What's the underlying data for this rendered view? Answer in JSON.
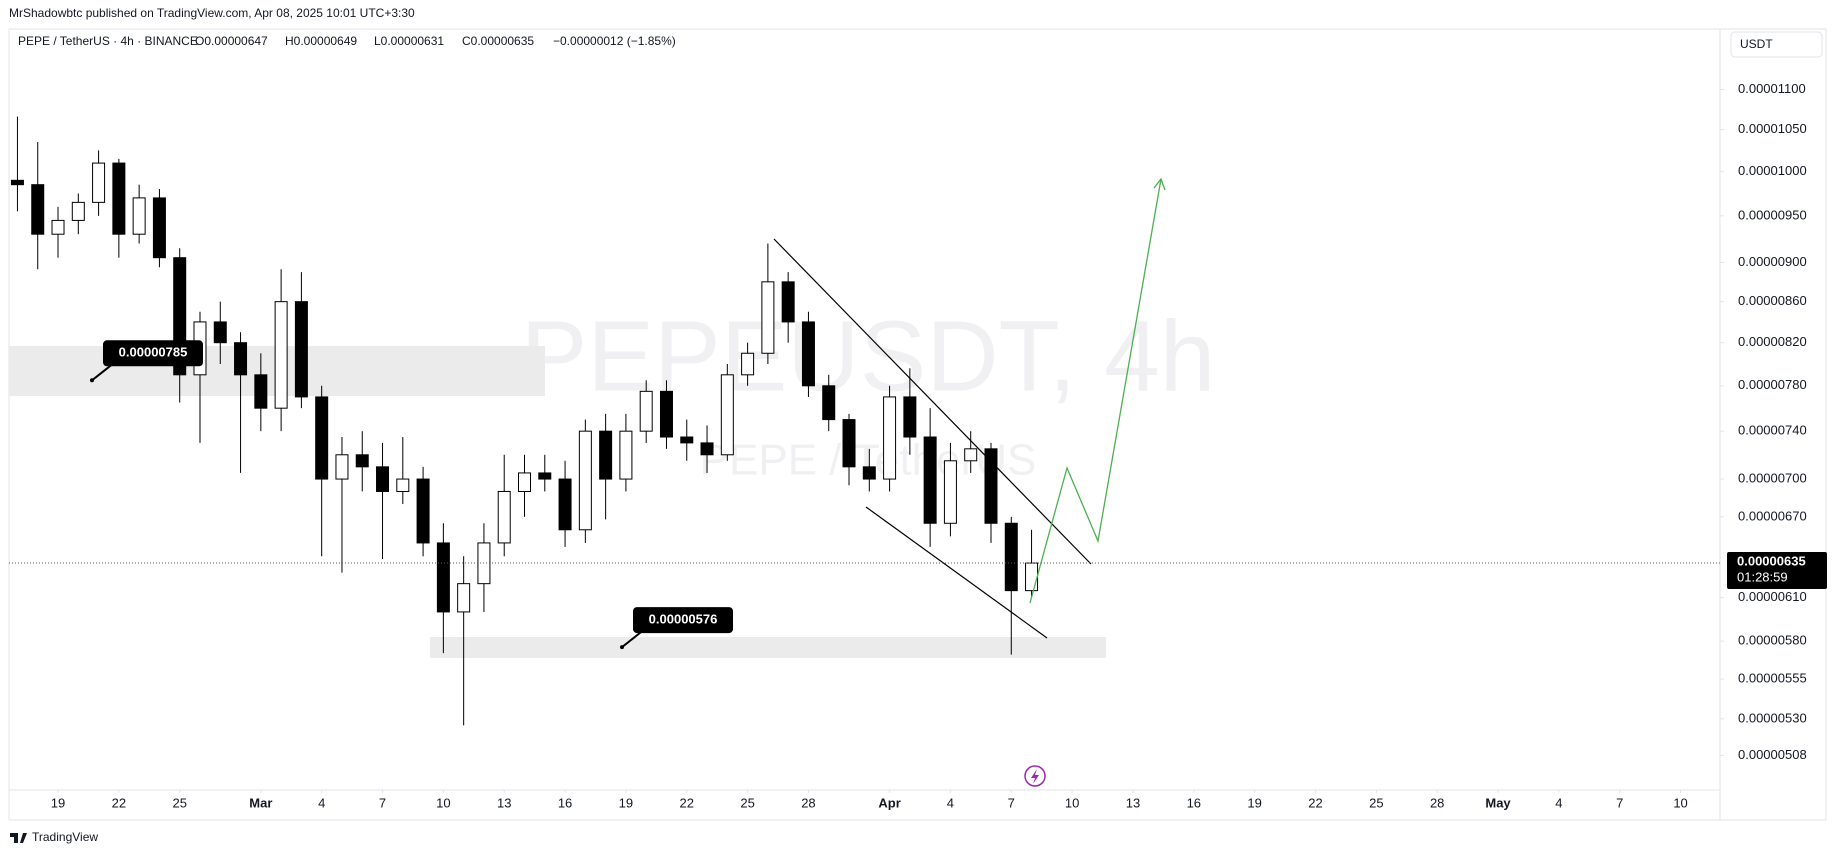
{
  "header": {
    "published": "MrShadowbtc published on TradingView.com, Apr 08, 2025 10:01 UTC+3:30"
  },
  "legend": {
    "symbol": "PEPE / TetherUS · 4h · BINANCE",
    "open": "O0.00000647",
    "high": "H0.00000649",
    "low": "L0.00000631",
    "close": "C0.00000635",
    "change": "−0.00000012 (−1.85%)"
  },
  "currency_button": "USDT",
  "footer": {
    "logo": "TradingView"
  },
  "chart_data": {
    "type": "candlestick",
    "watermark": "PEPEUSDT, 4h",
    "watermark_sub": "PEPE / TetherUS",
    "log_scale": true,
    "grid": false,
    "up_color": "#ffffff",
    "down_color": "#000000",
    "x": [
      "2025-02-17",
      "2025-02-18",
      "2025-02-19",
      "2025-02-20",
      "2025-02-21",
      "2025-02-22",
      "2025-02-23",
      "2025-02-24",
      "2025-02-25",
      "2025-02-26",
      "2025-02-27",
      "2025-02-28",
      "2025-03-01",
      "2025-03-02",
      "2025-03-03",
      "2025-03-04",
      "2025-03-05",
      "2025-03-06",
      "2025-03-07",
      "2025-03-08",
      "2025-03-09",
      "2025-03-10",
      "2025-03-11",
      "2025-03-12",
      "2025-03-13",
      "2025-03-14",
      "2025-03-15",
      "2025-03-16",
      "2025-03-17",
      "2025-03-18",
      "2025-03-19",
      "2025-03-20",
      "2025-03-21",
      "2025-03-22",
      "2025-03-23",
      "2025-03-24",
      "2025-03-25",
      "2025-03-26",
      "2025-03-27",
      "2025-03-28",
      "2025-03-29",
      "2025-03-30",
      "2025-03-31",
      "2025-04-01",
      "2025-04-02",
      "2025-04-03",
      "2025-04-04",
      "2025-04-05",
      "2025-04-06",
      "2025-04-07",
      "2025-04-08"
    ],
    "open": [
      9.9e-06,
      9.85e-06,
      9.3e-06,
      9.45e-06,
      9.65e-06,
      1.01e-05,
      9.3e-06,
      9.7e-06,
      9.05e-06,
      7.9e-06,
      8.4e-06,
      8.2e-06,
      7.9e-06,
      7.6e-06,
      8.6e-06,
      7.7e-06,
      7e-06,
      7.2e-06,
      7.1e-06,
      6.9e-06,
      7e-06,
      6.5e-06,
      6e-06,
      6.2e-06,
      6.5e-06,
      6.9e-06,
      7.05e-06,
      7e-06,
      6.6e-06,
      7.4e-06,
      7e-06,
      7.4e-06,
      7.75e-06,
      7.35e-06,
      7.3e-06,
      7.2e-06,
      7.9e-06,
      8.1e-06,
      8.8e-06,
      8.4e-06,
      7.8e-06,
      7.5e-06,
      7.1e-06,
      7e-06,
      7.7e-06,
      7.35e-06,
      6.65e-06,
      7.15e-06,
      7.25e-06,
      6.65e-06,
      6.15e-06
    ],
    "high": [
      1.066e-05,
      1.035e-05,
      9.6e-06,
      9.75e-06,
      1.025e-05,
      1.015e-05,
      9.85e-06,
      9.8e-06,
      9.15e-06,
      8.5e-06,
      8.6e-06,
      8.3e-06,
      8.1e-06,
      8.93e-06,
      8.9e-06,
      7.8e-06,
      7.35e-06,
      7.4e-06,
      7.3e-06,
      7.35e-06,
      7.1e-06,
      6.65e-06,
      6.4e-06,
      6.65e-06,
      7.2e-06,
      7.2e-06,
      7.2e-06,
      7.15e-06,
      7.5e-06,
      7.55e-06,
      7.55e-06,
      7.85e-06,
      7.85e-06,
      7.5e-06,
      7.45e-06,
      8e-06,
      8.2e-06,
      9.2e-06,
      8.9e-06,
      8.5e-06,
      7.9e-06,
      7.55e-06,
      7.25e-06,
      7.8e-06,
      7.96e-06,
      7.6e-06,
      7.3e-06,
      7.4e-06,
      7.3e-06,
      6.7e-06,
      6.6e-06
    ],
    "low": [
      9.55e-06,
      8.93e-06,
      9.05e-06,
      9.3e-06,
      9.5e-06,
      9.05e-06,
      9.2e-06,
      8.95e-06,
      7.65e-06,
      7.3e-06,
      8e-06,
      7.05e-06,
      7.4e-06,
      7.4e-06,
      7.6e-06,
      6.4e-06,
      6.28e-06,
      6.9e-06,
      6.38e-06,
      6.8e-06,
      6.4e-06,
      5.72e-06,
      5.26e-06,
      6e-06,
      6.4e-06,
      6.7e-06,
      6.9e-06,
      6.47e-06,
      6.5e-06,
      6.68e-06,
      6.9e-06,
      7.3e-06,
      7.25e-06,
      7.15e-06,
      7.05e-06,
      7.15e-06,
      7.8e-06,
      8e-06,
      8.2e-06,
      7.7e-06,
      7.4e-06,
      6.95e-06,
      6.9e-06,
      6.9e-06,
      7.2e-06,
      6.47e-06,
      6.55e-06,
      7.05e-06,
      6.5e-06,
      5.71e-06,
      6.1e-06
    ],
    "close": [
      9.85e-06,
      9.3e-06,
      9.45e-06,
      9.65e-06,
      1.01e-05,
      9.3e-06,
      9.7e-06,
      9.05e-06,
      7.9e-06,
      8.4e-06,
      8.2e-06,
      7.9e-06,
      7.6e-06,
      8.6e-06,
      7.7e-06,
      7e-06,
      7.2e-06,
      7.1e-06,
      6.9e-06,
      7e-06,
      6.5e-06,
      6e-06,
      6.2e-06,
      6.5e-06,
      6.9e-06,
      7.05e-06,
      7e-06,
      6.6e-06,
      7.4e-06,
      7e-06,
      7.4e-06,
      7.75e-06,
      7.35e-06,
      7.3e-06,
      7.2e-06,
      7.9e-06,
      8.1e-06,
      8.8e-06,
      8.4e-06,
      7.8e-06,
      7.5e-06,
      7.1e-06,
      7e-06,
      7.7e-06,
      7.35e-06,
      6.65e-06,
      7.15e-06,
      7.25e-06,
      6.65e-06,
      6.15e-06,
      6.35e-06
    ],
    "xlim": [
      "2025-02-16T14:00",
      "2025-05-11T12:00"
    ],
    "ylim": [
      4.88e-06,
      1.18e-05
    ],
    "yticks": [
      {
        "value": 1.1e-05,
        "label": "0.00001100"
      },
      {
        "value": 1.05e-05,
        "label": "0.00001050"
      },
      {
        "value": 1e-05,
        "label": "0.00001000"
      },
      {
        "value": 9.5e-06,
        "label": "0.00000950"
      },
      {
        "value": 9e-06,
        "label": "0.00000900"
      },
      {
        "value": 8.6e-06,
        "label": "0.00000860"
      },
      {
        "value": 8.2e-06,
        "label": "0.00000820"
      },
      {
        "value": 7.8e-06,
        "label": "0.00000780"
      },
      {
        "value": 7.4e-06,
        "label": "0.00000740"
      },
      {
        "value": 7e-06,
        "label": "0.00000700"
      },
      {
        "value": 6.7e-06,
        "label": "0.00000670"
      },
      {
        "value": 6.1e-06,
        "label": "0.00000610"
      },
      {
        "value": 5.8e-06,
        "label": "0.00000580"
      },
      {
        "value": 5.55e-06,
        "label": "0.00000555"
      },
      {
        "value": 5.3e-06,
        "label": "0.00000530"
      },
      {
        "value": 5.08e-06,
        "label": "0.00000508"
      }
    ],
    "xticks": [
      {
        "value": "2025-02-19",
        "label": "19"
      },
      {
        "value": "2025-02-22",
        "label": "22"
      },
      {
        "value": "2025-02-25",
        "label": "25"
      },
      {
        "value": "2025-03-01",
        "label": "Mar"
      },
      {
        "value": "2025-03-04",
        "label": "4"
      },
      {
        "value": "2025-03-07",
        "label": "7"
      },
      {
        "value": "2025-03-10",
        "label": "10"
      },
      {
        "value": "2025-03-13",
        "label": "13"
      },
      {
        "value": "2025-03-16",
        "label": "16"
      },
      {
        "value": "2025-03-19",
        "label": "19"
      },
      {
        "value": "2025-03-22",
        "label": "22"
      },
      {
        "value": "2025-03-25",
        "label": "25"
      },
      {
        "value": "2025-03-28",
        "label": "28"
      },
      {
        "value": "2025-04-01",
        "label": "Apr"
      },
      {
        "value": "2025-04-04",
        "label": "4"
      },
      {
        "value": "2025-04-07",
        "label": "7"
      },
      {
        "value": "2025-04-10",
        "label": "10"
      },
      {
        "value": "2025-04-13",
        "label": "13"
      },
      {
        "value": "2025-04-16",
        "label": "16"
      },
      {
        "value": "2025-04-19",
        "label": "19"
      },
      {
        "value": "2025-04-22",
        "label": "22"
      },
      {
        "value": "2025-04-25",
        "label": "25"
      },
      {
        "value": "2025-04-28",
        "label": "28"
      },
      {
        "value": "2025-05-01",
        "label": "May"
      },
      {
        "value": "2025-05-04",
        "label": "4"
      },
      {
        "value": "2025-05-07",
        "label": "7"
      },
      {
        "value": "2025-05-10",
        "label": "10"
      }
    ],
    "last_price": {
      "value": 6.35e-06,
      "label": "0.00000635"
    },
    "countdown": "01:28:59",
    "annotations": [
      {
        "value": 7.85e-06,
        "label": "0.00000785"
      },
      {
        "value": 5.76e-06,
        "label": "0.00000576"
      }
    ]
  }
}
